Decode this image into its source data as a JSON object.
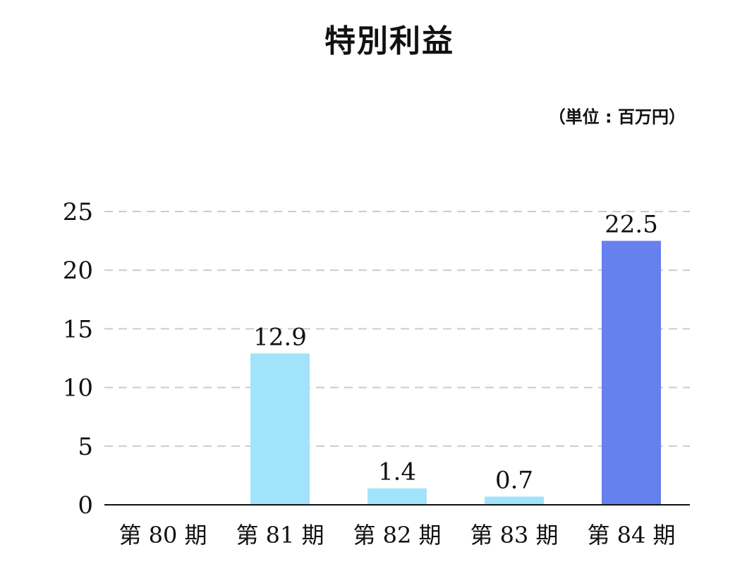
{
  "chart_data": {
    "type": "bar",
    "title": "特別利益",
    "unit": "（単位 : 百万円）",
    "categories": [
      "第 80 期",
      "第 81 期",
      "第 82 期",
      "第 83 期",
      "第 84 期"
    ],
    "values": [
      0,
      12.9,
      1.4,
      0.7,
      22.5
    ],
    "data_labels": [
      "",
      "12.9",
      "1.4",
      "0.7",
      "22.5"
    ],
    "ylim": [
      0,
      25
    ],
    "yticks": [
      0,
      5,
      10,
      15,
      20,
      25
    ],
    "grid": "dashed-horizontal",
    "legend": "none",
    "colors": {
      "past": "#a2e3fc",
      "latest": "#6680ee",
      "grid": "#cccccc",
      "axis": "#111111"
    }
  }
}
